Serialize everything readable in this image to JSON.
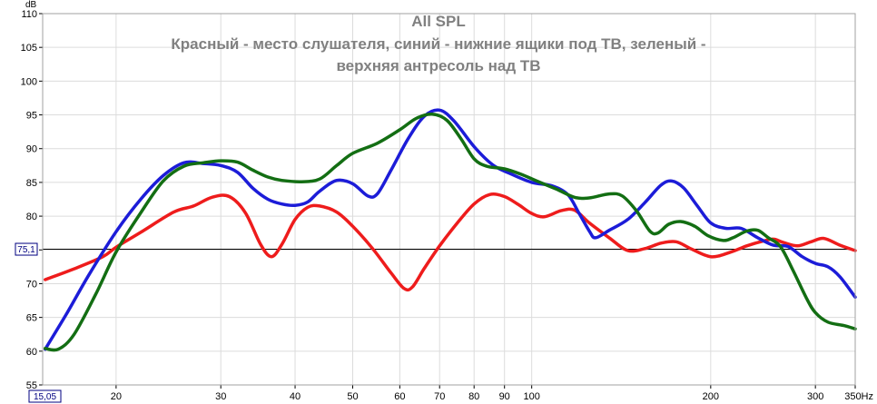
{
  "chart_data": {
    "type": "line",
    "title": "All SPL",
    "subtitle_line1": "Красный - место слушателя, синий - нижние ящики под ТВ, зеленый -",
    "subtitle_line2": "верхняя антресоль над ТВ",
    "ylabel": "dB",
    "x_unit": "Hz",
    "x_scale": "log",
    "xlim": [
      15.05,
      350
    ],
    "ylim": [
      55,
      110
    ],
    "y_ticks": [
      "55",
      "60",
      "65",
      "70",
      "75",
      "80",
      "85",
      "90",
      "95",
      "100",
      "105",
      "110"
    ],
    "x_ticks": [
      {
        "v": 20,
        "label": "20"
      },
      {
        "v": 30,
        "label": "30"
      },
      {
        "v": 40,
        "label": "40"
      },
      {
        "v": 50,
        "label": "50"
      },
      {
        "v": 60,
        "label": "60"
      },
      {
        "v": 70,
        "label": "70"
      },
      {
        "v": 80,
        "label": "80"
      },
      {
        "v": 90,
        "label": "90"
      },
      {
        "v": 100,
        "label": "100"
      },
      {
        "v": 200,
        "label": "200"
      },
      {
        "v": 300,
        "label": "300"
      },
      {
        "v": 350,
        "label": "350Hz"
      }
    ],
    "x_min_label": "15,05",
    "reference_line": {
      "value": 75.1,
      "label": "75,1"
    },
    "grid": true,
    "series": [
      {
        "color": "#ee1c1c",
        "points": [
          [
            15.2,
            70.6
          ],
          [
            17,
            72.2
          ],
          [
            19,
            74
          ],
          [
            20,
            75.4
          ],
          [
            22,
            77.6
          ],
          [
            25,
            80.6
          ],
          [
            27,
            81.5
          ],
          [
            29,
            82.8
          ],
          [
            31,
            82.9
          ],
          [
            33,
            80.5
          ],
          [
            35,
            75.8
          ],
          [
            36.5,
            74
          ],
          [
            38,
            75.8
          ],
          [
            40,
            79.5
          ],
          [
            42,
            81.3
          ],
          [
            44,
            81.5
          ],
          [
            47,
            80.6
          ],
          [
            50,
            78.5
          ],
          [
            54,
            75.2
          ],
          [
            58,
            71.6
          ],
          [
            61,
            69.3
          ],
          [
            63,
            69.5
          ],
          [
            66,
            72.3
          ],
          [
            70,
            75.6
          ],
          [
            75,
            79
          ],
          [
            80,
            81.8
          ],
          [
            85,
            83.2
          ],
          [
            90,
            82.9
          ],
          [
            95,
            81.7
          ],
          [
            100,
            80.4
          ],
          [
            105,
            79.9
          ],
          [
            112,
            80.8
          ],
          [
            118,
            80.9
          ],
          [
            125,
            79
          ],
          [
            135,
            76.8
          ],
          [
            145,
            74.9
          ],
          [
            155,
            75.2
          ],
          [
            165,
            76
          ],
          [
            175,
            76.2
          ],
          [
            185,
            75.2
          ],
          [
            200,
            74
          ],
          [
            215,
            74.6
          ],
          [
            230,
            75.6
          ],
          [
            245,
            76.3
          ],
          [
            255,
            76.6
          ],
          [
            265,
            76.1
          ],
          [
            280,
            75.6
          ],
          [
            295,
            76.2
          ],
          [
            310,
            76.7
          ],
          [
            330,
            75.7
          ],
          [
            350,
            74.9
          ]
        ]
      },
      {
        "color": "#1c1cd8",
        "points": [
          [
            15.2,
            60.3
          ],
          [
            16.5,
            65.5
          ],
          [
            18,
            71.3
          ],
          [
            20,
            77.7
          ],
          [
            22,
            82.5
          ],
          [
            24,
            86
          ],
          [
            26,
            87.9
          ],
          [
            28,
            87.8
          ],
          [
            30,
            87.5
          ],
          [
            32,
            86.5
          ],
          [
            34,
            84.1
          ],
          [
            36,
            82.5
          ],
          [
            38,
            81.8
          ],
          [
            40,
            81.6
          ],
          [
            42,
            82.1
          ],
          [
            44,
            83.7
          ],
          [
            47,
            85.3
          ],
          [
            50,
            84.8
          ],
          [
            53,
            83
          ],
          [
            55,
            83.3
          ],
          [
            58,
            86.8
          ],
          [
            62,
            91.5
          ],
          [
            66,
            94.8
          ],
          [
            70,
            95.7
          ],
          [
            74,
            94.1
          ],
          [
            80,
            90.3
          ],
          [
            86,
            87.6
          ],
          [
            92,
            86.3
          ],
          [
            100,
            85
          ],
          [
            108,
            84.5
          ],
          [
            115,
            83.2
          ],
          [
            120,
            80.5
          ],
          [
            125,
            77.8
          ],
          [
            128,
            76.8
          ],
          [
            135,
            77.9
          ],
          [
            145,
            79.5
          ],
          [
            155,
            82
          ],
          [
            165,
            84.6
          ],
          [
            172,
            85.2
          ],
          [
            180,
            84.2
          ],
          [
            190,
            81.5
          ],
          [
            200,
            79
          ],
          [
            212,
            78.2
          ],
          [
            225,
            78.2
          ],
          [
            240,
            76.8
          ],
          [
            255,
            75.7
          ],
          [
            270,
            75.5
          ],
          [
            285,
            74
          ],
          [
            300,
            73
          ],
          [
            315,
            72.5
          ],
          [
            330,
            71
          ],
          [
            350,
            68
          ]
        ]
      },
      {
        "color": "#136e13",
        "points": [
          [
            15.2,
            60.4
          ],
          [
            16,
            60.3
          ],
          [
            17,
            62.5
          ],
          [
            18.5,
            68.5
          ],
          [
            20,
            74.7
          ],
          [
            22,
            80.5
          ],
          [
            24,
            85.2
          ],
          [
            26,
            87.4
          ],
          [
            28,
            87.9
          ],
          [
            30,
            88.2
          ],
          [
            32,
            88
          ],
          [
            34,
            86.8
          ],
          [
            36,
            85.8
          ],
          [
            38,
            85.3
          ],
          [
            41,
            85.1
          ],
          [
            44,
            85.5
          ],
          [
            47,
            87.5
          ],
          [
            50,
            89.3
          ],
          [
            55,
            90.8
          ],
          [
            60,
            92.8
          ],
          [
            64,
            94.5
          ],
          [
            68,
            95.1
          ],
          [
            72,
            94.2
          ],
          [
            76,
            91.5
          ],
          [
            80,
            88.5
          ],
          [
            84,
            87.4
          ],
          [
            90,
            87
          ],
          [
            96,
            86.2
          ],
          [
            102,
            85.2
          ],
          [
            110,
            84
          ],
          [
            118,
            82.8
          ],
          [
            125,
            82.7
          ],
          [
            135,
            83.3
          ],
          [
            142,
            83
          ],
          [
            150,
            80.8
          ],
          [
            158,
            77.8
          ],
          [
            163,
            77.5
          ],
          [
            170,
            78.8
          ],
          [
            178,
            79.2
          ],
          [
            188,
            78.5
          ],
          [
            198,
            77.1
          ],
          [
            210,
            76.4
          ],
          [
            218,
            76.8
          ],
          [
            230,
            77.8
          ],
          [
            240,
            77.9
          ],
          [
            250,
            76.8
          ],
          [
            262,
            75.5
          ],
          [
            275,
            72
          ],
          [
            290,
            67.8
          ],
          [
            300,
            65.7
          ],
          [
            315,
            64.3
          ],
          [
            335,
            63.8
          ],
          [
            350,
            63.3
          ]
        ]
      }
    ]
  }
}
